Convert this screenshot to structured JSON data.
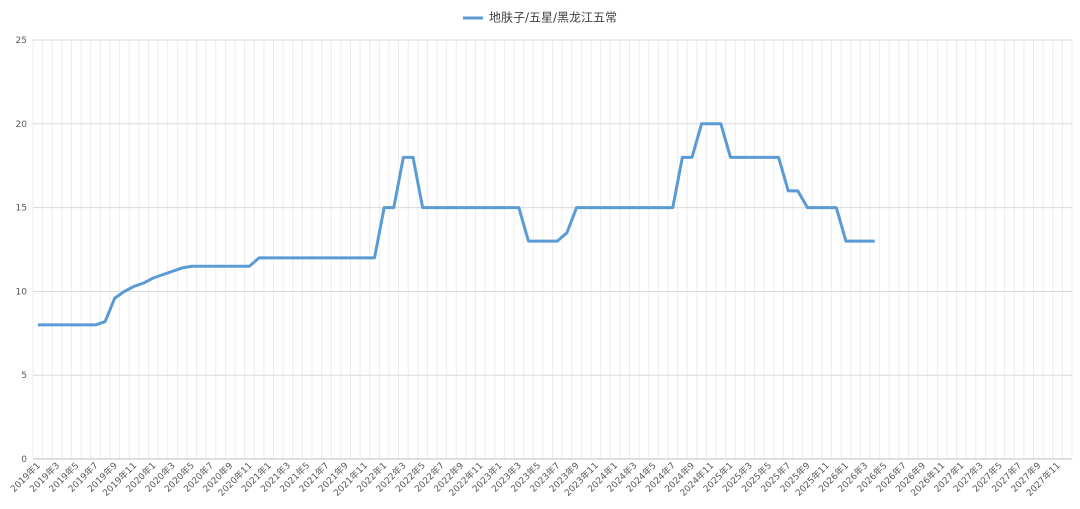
{
  "chart_data": {
    "type": "line",
    "categories": [
      "2019年1",
      null,
      "2019年3",
      null,
      "2019年5",
      null,
      "2019年7",
      null,
      "2019年9",
      null,
      "2019年11",
      null,
      "2020年1",
      null,
      "2020年3",
      null,
      "2020年5",
      null,
      "2020年7",
      null,
      "2020年9",
      null,
      "2020年11",
      null,
      "2021年1",
      null,
      "2021年3",
      null,
      "2021年5",
      null,
      "2021年7",
      null,
      "2021年9",
      null,
      "2021年11",
      null,
      "2022年1",
      null,
      "2022年3",
      null,
      "2022年5",
      null,
      "2022年7",
      null,
      "2022年9",
      null,
      "2022年11",
      null,
      "2023年1",
      null,
      "2023年3",
      null,
      "2023年5",
      null,
      "2023年7",
      null,
      "2023年9",
      null,
      "2023年11",
      null,
      "2024年1",
      null,
      "2024年3",
      null,
      "2024年5",
      null,
      "2024年7",
      null,
      "2024年9",
      null,
      "2024年11",
      null,
      "2025年1",
      null,
      "2025年3",
      null,
      "2025年5",
      null,
      "2025年7",
      null,
      "2025年9",
      null,
      "2025年11",
      null,
      "2026年1",
      null,
      "2026年3",
      null,
      "2026年5",
      null,
      "2026年7",
      null,
      "2026年9",
      null,
      "2026年11",
      null,
      "2027年1",
      null,
      "2027年3",
      null,
      "2027年5",
      null,
      "2027年7",
      null,
      "2027年9",
      null,
      "2027年11",
      null
    ],
    "series": [
      {
        "name": "地肤子/五星/黑龙江五常",
        "color": "#5b9bd5",
        "values": [
          8,
          8,
          8,
          8,
          8,
          8,
          8,
          8.2,
          9.6,
          10,
          10.3,
          10.5,
          10.8,
          11,
          11.2,
          11.4,
          11.5,
          11.5,
          11.5,
          11.5,
          11.5,
          11.5,
          11.5,
          12,
          12,
          12,
          12,
          12,
          12,
          12,
          12,
          12,
          12,
          12,
          12,
          12,
          15,
          15,
          18,
          18,
          15,
          15,
          15,
          15,
          15,
          15,
          15,
          15,
          15,
          15,
          15,
          13,
          13,
          13,
          13,
          13.5,
          15,
          15,
          15,
          15,
          15,
          15,
          15,
          15,
          15,
          15,
          15,
          18,
          18,
          20,
          20,
          20,
          18,
          18,
          18,
          18,
          18,
          18,
          16,
          16,
          15,
          15,
          15,
          15,
          13,
          13,
          13,
          13,
          null,
          null,
          null,
          null,
          null,
          null,
          null,
          null,
          null,
          null,
          null,
          null,
          null,
          null,
          null,
          null,
          null,
          null,
          null,
          null
        ]
      }
    ],
    "ylim": [
      0,
      25
    ],
    "yticks": [
      0,
      5,
      10,
      15,
      20,
      25
    ],
    "grid": true,
    "legend": "top"
  }
}
